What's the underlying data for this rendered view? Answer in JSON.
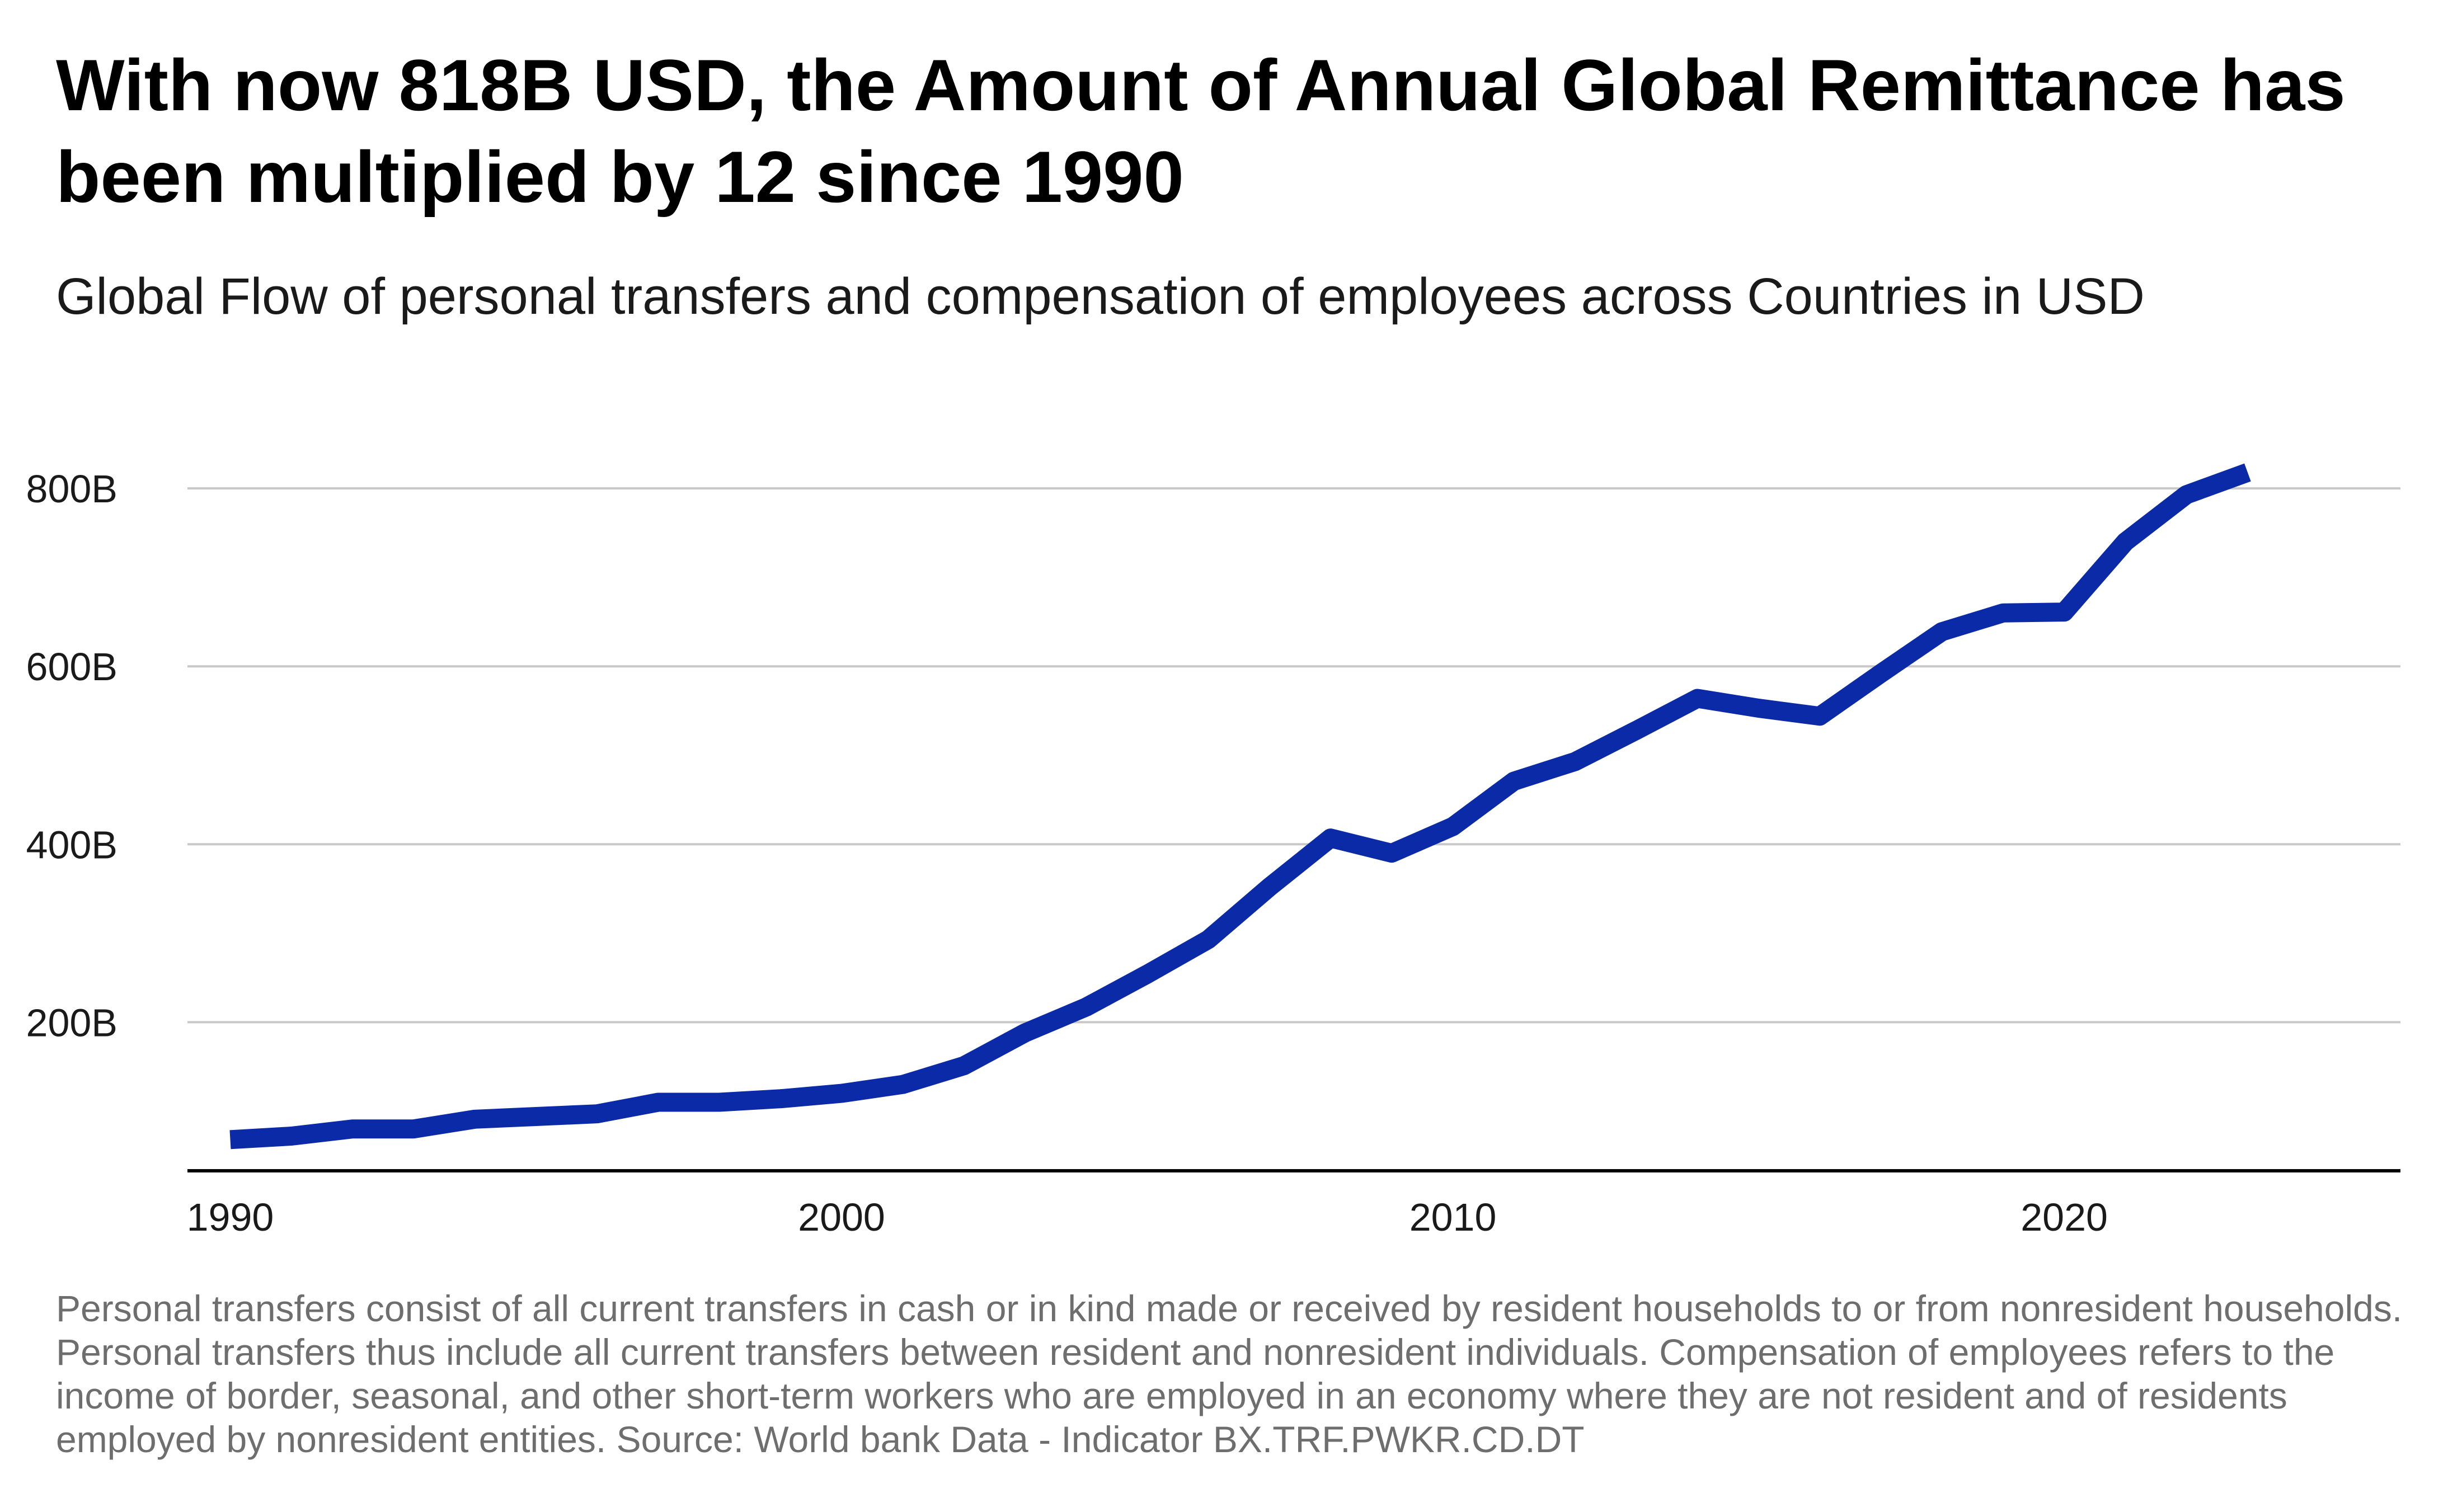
{
  "title": "With now 818B USD, the Amount of Annual Global Remittance has been multiplied by 12 since 1990",
  "subtitle": "Global Flow of personal transfers and compensation of employees across Countries in USD",
  "caption": "Personal transfers consist of all current transfers in cash or in kind made or received by resident households to or from nonresident households. Personal transfers thus include all current transfers between resident and nonresident individuals. Compensation of employees refers to the income of border, seasonal, and other short-term workers who are employed in an economy where they are not resident and of residents employed by nonresident entities. Source: World bank Data - Indicator BX.TRF.PWKR.CD.DT",
  "colors": {
    "line": "#0a2aa8",
    "grid": "#c8c8c8",
    "axis": "#000000"
  },
  "chart_data": {
    "type": "line",
    "title": "With now 818B USD, the Amount of Annual Global Remittance has been multiplied by 12 since 1990",
    "subtitle": "Global Flow of personal transfers and compensation of employees across Countries in USD",
    "xlabel": "",
    "ylabel": "",
    "x_ticks": [
      1990,
      2000,
      2010,
      2020
    ],
    "x_tick_labels": [
      "1990",
      "2000",
      "2010",
      "2020"
    ],
    "y_ticks": [
      200,
      400,
      600,
      800
    ],
    "y_tick_labels": [
      "200B",
      "400B",
      "600B",
      "800B"
    ],
    "y_unit": "billion USD",
    "xlim": [
      1989.3,
      2025.5
    ],
    "ylim": [
      33,
      890
    ],
    "grid": "horizontal",
    "series": [
      {
        "x": [
          1990,
          1991,
          1992,
          1993,
          1994,
          1995,
          1996,
          1997,
          1998,
          1999,
          2000,
          2001,
          2002,
          2003,
          2004,
          2005,
          2006,
          2007,
          2008,
          2009,
          2010,
          2011,
          2012,
          2013,
          2014,
          2015,
          2016,
          2017,
          2018,
          2019,
          2020,
          2021,
          2022,
          2023
        ],
        "values": [
          68,
          72,
          80,
          80,
          91,
          94,
          97,
          110,
          110,
          114,
          120,
          130,
          151,
          188,
          217,
          254,
          293,
          352,
          407,
          390,
          420,
          471,
          493,
          528,
          564,
          553,
          544,
          592,
          639,
          660,
          661,
          740,
          793,
          818
        ]
      }
    ]
  }
}
